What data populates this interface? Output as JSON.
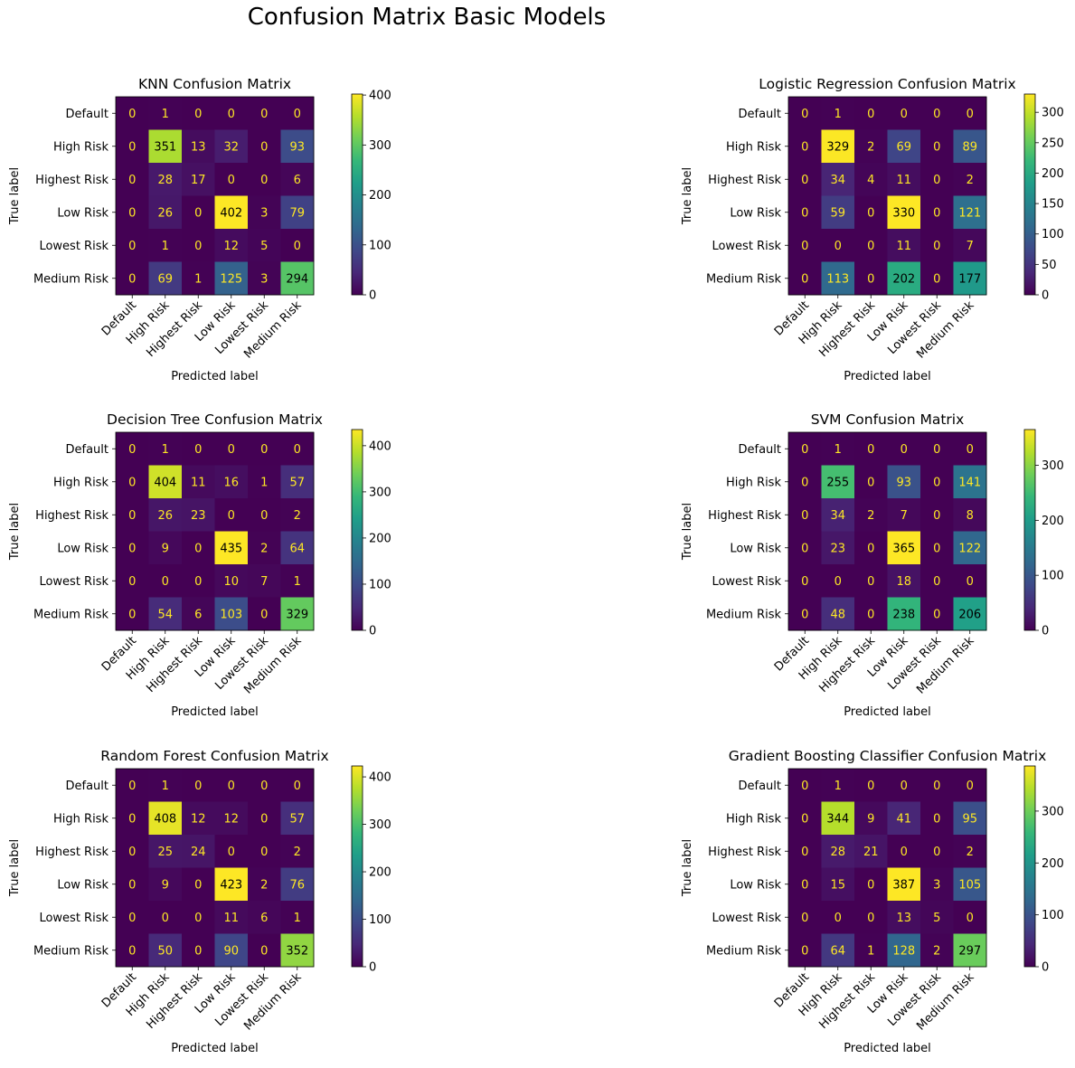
{
  "figure": {
    "suptitle": "Confusion Matrix Basic Models"
  },
  "colormap": [
    "#440154",
    "#482878",
    "#3e4989",
    "#31688e",
    "#26828e",
    "#1f9e89",
    "#35b779",
    "#6ece58",
    "#b5de2b",
    "#fde725"
  ],
  "text_colors": {
    "low": "#fde725",
    "high": "#000000"
  },
  "chart_data": [
    {
      "type": "heatmap",
      "title": "KNN Confusion Matrix",
      "xlabel": "Predicted label",
      "ylabel": "True label",
      "labels": [
        "Default",
        "High Risk",
        "Highest Risk",
        "Low Risk",
        "Lowest Risk",
        "Medium Risk"
      ],
      "matrix": [
        [
          0,
          1,
          0,
          0,
          0,
          0
        ],
        [
          0,
          351,
          13,
          32,
          0,
          93
        ],
        [
          0,
          28,
          17,
          0,
          0,
          6
        ],
        [
          0,
          26,
          0,
          402,
          3,
          79
        ],
        [
          0,
          1,
          0,
          12,
          5,
          0
        ],
        [
          0,
          69,
          1,
          125,
          3,
          294
        ]
      ],
      "colorbar_ticks": [
        0,
        100,
        200,
        300,
        400
      ],
      "vmax": 402
    },
    {
      "type": "heatmap",
      "title": "Logistic Regression Confusion Matrix",
      "xlabel": "Predicted label",
      "ylabel": "True label",
      "labels": [
        "Default",
        "High Risk",
        "Highest Risk",
        "Low Risk",
        "Lowest Risk",
        "Medium Risk"
      ],
      "matrix": [
        [
          0,
          1,
          0,
          0,
          0,
          0
        ],
        [
          0,
          329,
          2,
          69,
          0,
          89
        ],
        [
          0,
          34,
          4,
          11,
          0,
          2
        ],
        [
          0,
          59,
          0,
          330,
          0,
          121
        ],
        [
          0,
          0,
          0,
          11,
          0,
          7
        ],
        [
          0,
          113,
          0,
          202,
          0,
          177
        ]
      ],
      "colorbar_ticks": [
        0,
        50,
        100,
        150,
        200,
        250,
        300
      ],
      "vmax": 330
    },
    {
      "type": "heatmap",
      "title": "Decision Tree Confusion Matrix",
      "xlabel": "Predicted label",
      "ylabel": "True label",
      "labels": [
        "Default",
        "High Risk",
        "Highest Risk",
        "Low Risk",
        "Lowest Risk",
        "Medium Risk"
      ],
      "matrix": [
        [
          0,
          1,
          0,
          0,
          0,
          0
        ],
        [
          0,
          404,
          11,
          16,
          1,
          57
        ],
        [
          0,
          26,
          23,
          0,
          0,
          2
        ],
        [
          0,
          9,
          0,
          435,
          2,
          64
        ],
        [
          0,
          0,
          0,
          10,
          7,
          1
        ],
        [
          0,
          54,
          6,
          103,
          0,
          329
        ]
      ],
      "colorbar_ticks": [
        0,
        100,
        200,
        300,
        400
      ],
      "vmax": 435
    },
    {
      "type": "heatmap",
      "title": "SVM Confusion Matrix",
      "xlabel": "Predicted label",
      "ylabel": "True label",
      "labels": [
        "Default",
        "High Risk",
        "Highest Risk",
        "Low Risk",
        "Lowest Risk",
        "Medium Risk"
      ],
      "matrix": [
        [
          0,
          1,
          0,
          0,
          0,
          0
        ],
        [
          0,
          255,
          0,
          93,
          0,
          141
        ],
        [
          0,
          34,
          2,
          7,
          0,
          8
        ],
        [
          0,
          23,
          0,
          365,
          0,
          122
        ],
        [
          0,
          0,
          0,
          18,
          0,
          0
        ],
        [
          0,
          48,
          0,
          238,
          0,
          206
        ]
      ],
      "colorbar_ticks": [
        0,
        100,
        200,
        300
      ],
      "vmax": 365
    },
    {
      "type": "heatmap",
      "title": "Random Forest Confusion Matrix",
      "xlabel": "Predicted label",
      "ylabel": "True label",
      "labels": [
        "Default",
        "High Risk",
        "Highest Risk",
        "Low Risk",
        "Lowest Risk",
        "Medium Risk"
      ],
      "matrix": [
        [
          0,
          1,
          0,
          0,
          0,
          0
        ],
        [
          0,
          408,
          12,
          12,
          0,
          57
        ],
        [
          0,
          25,
          24,
          0,
          0,
          2
        ],
        [
          0,
          9,
          0,
          423,
          2,
          76
        ],
        [
          0,
          0,
          0,
          11,
          6,
          1
        ],
        [
          0,
          50,
          0,
          90,
          0,
          352
        ]
      ],
      "colorbar_ticks": [
        0,
        100,
        200,
        300,
        400
      ],
      "vmax": 423
    },
    {
      "type": "heatmap",
      "title": "Gradient Boosting Classifier Confusion Matrix",
      "xlabel": "Predicted label",
      "ylabel": "True label",
      "labels": [
        "Default",
        "High Risk",
        "Highest Risk",
        "Low Risk",
        "Lowest Risk",
        "Medium Risk"
      ],
      "matrix": [
        [
          0,
          1,
          0,
          0,
          0,
          0
        ],
        [
          0,
          344,
          9,
          41,
          0,
          95
        ],
        [
          0,
          28,
          21,
          0,
          0,
          2
        ],
        [
          0,
          15,
          0,
          387,
          3,
          105
        ],
        [
          0,
          0,
          0,
          13,
          5,
          0
        ],
        [
          0,
          64,
          1,
          128,
          2,
          297
        ]
      ],
      "colorbar_ticks": [
        0,
        100,
        200,
        300
      ],
      "vmax": 387
    }
  ]
}
